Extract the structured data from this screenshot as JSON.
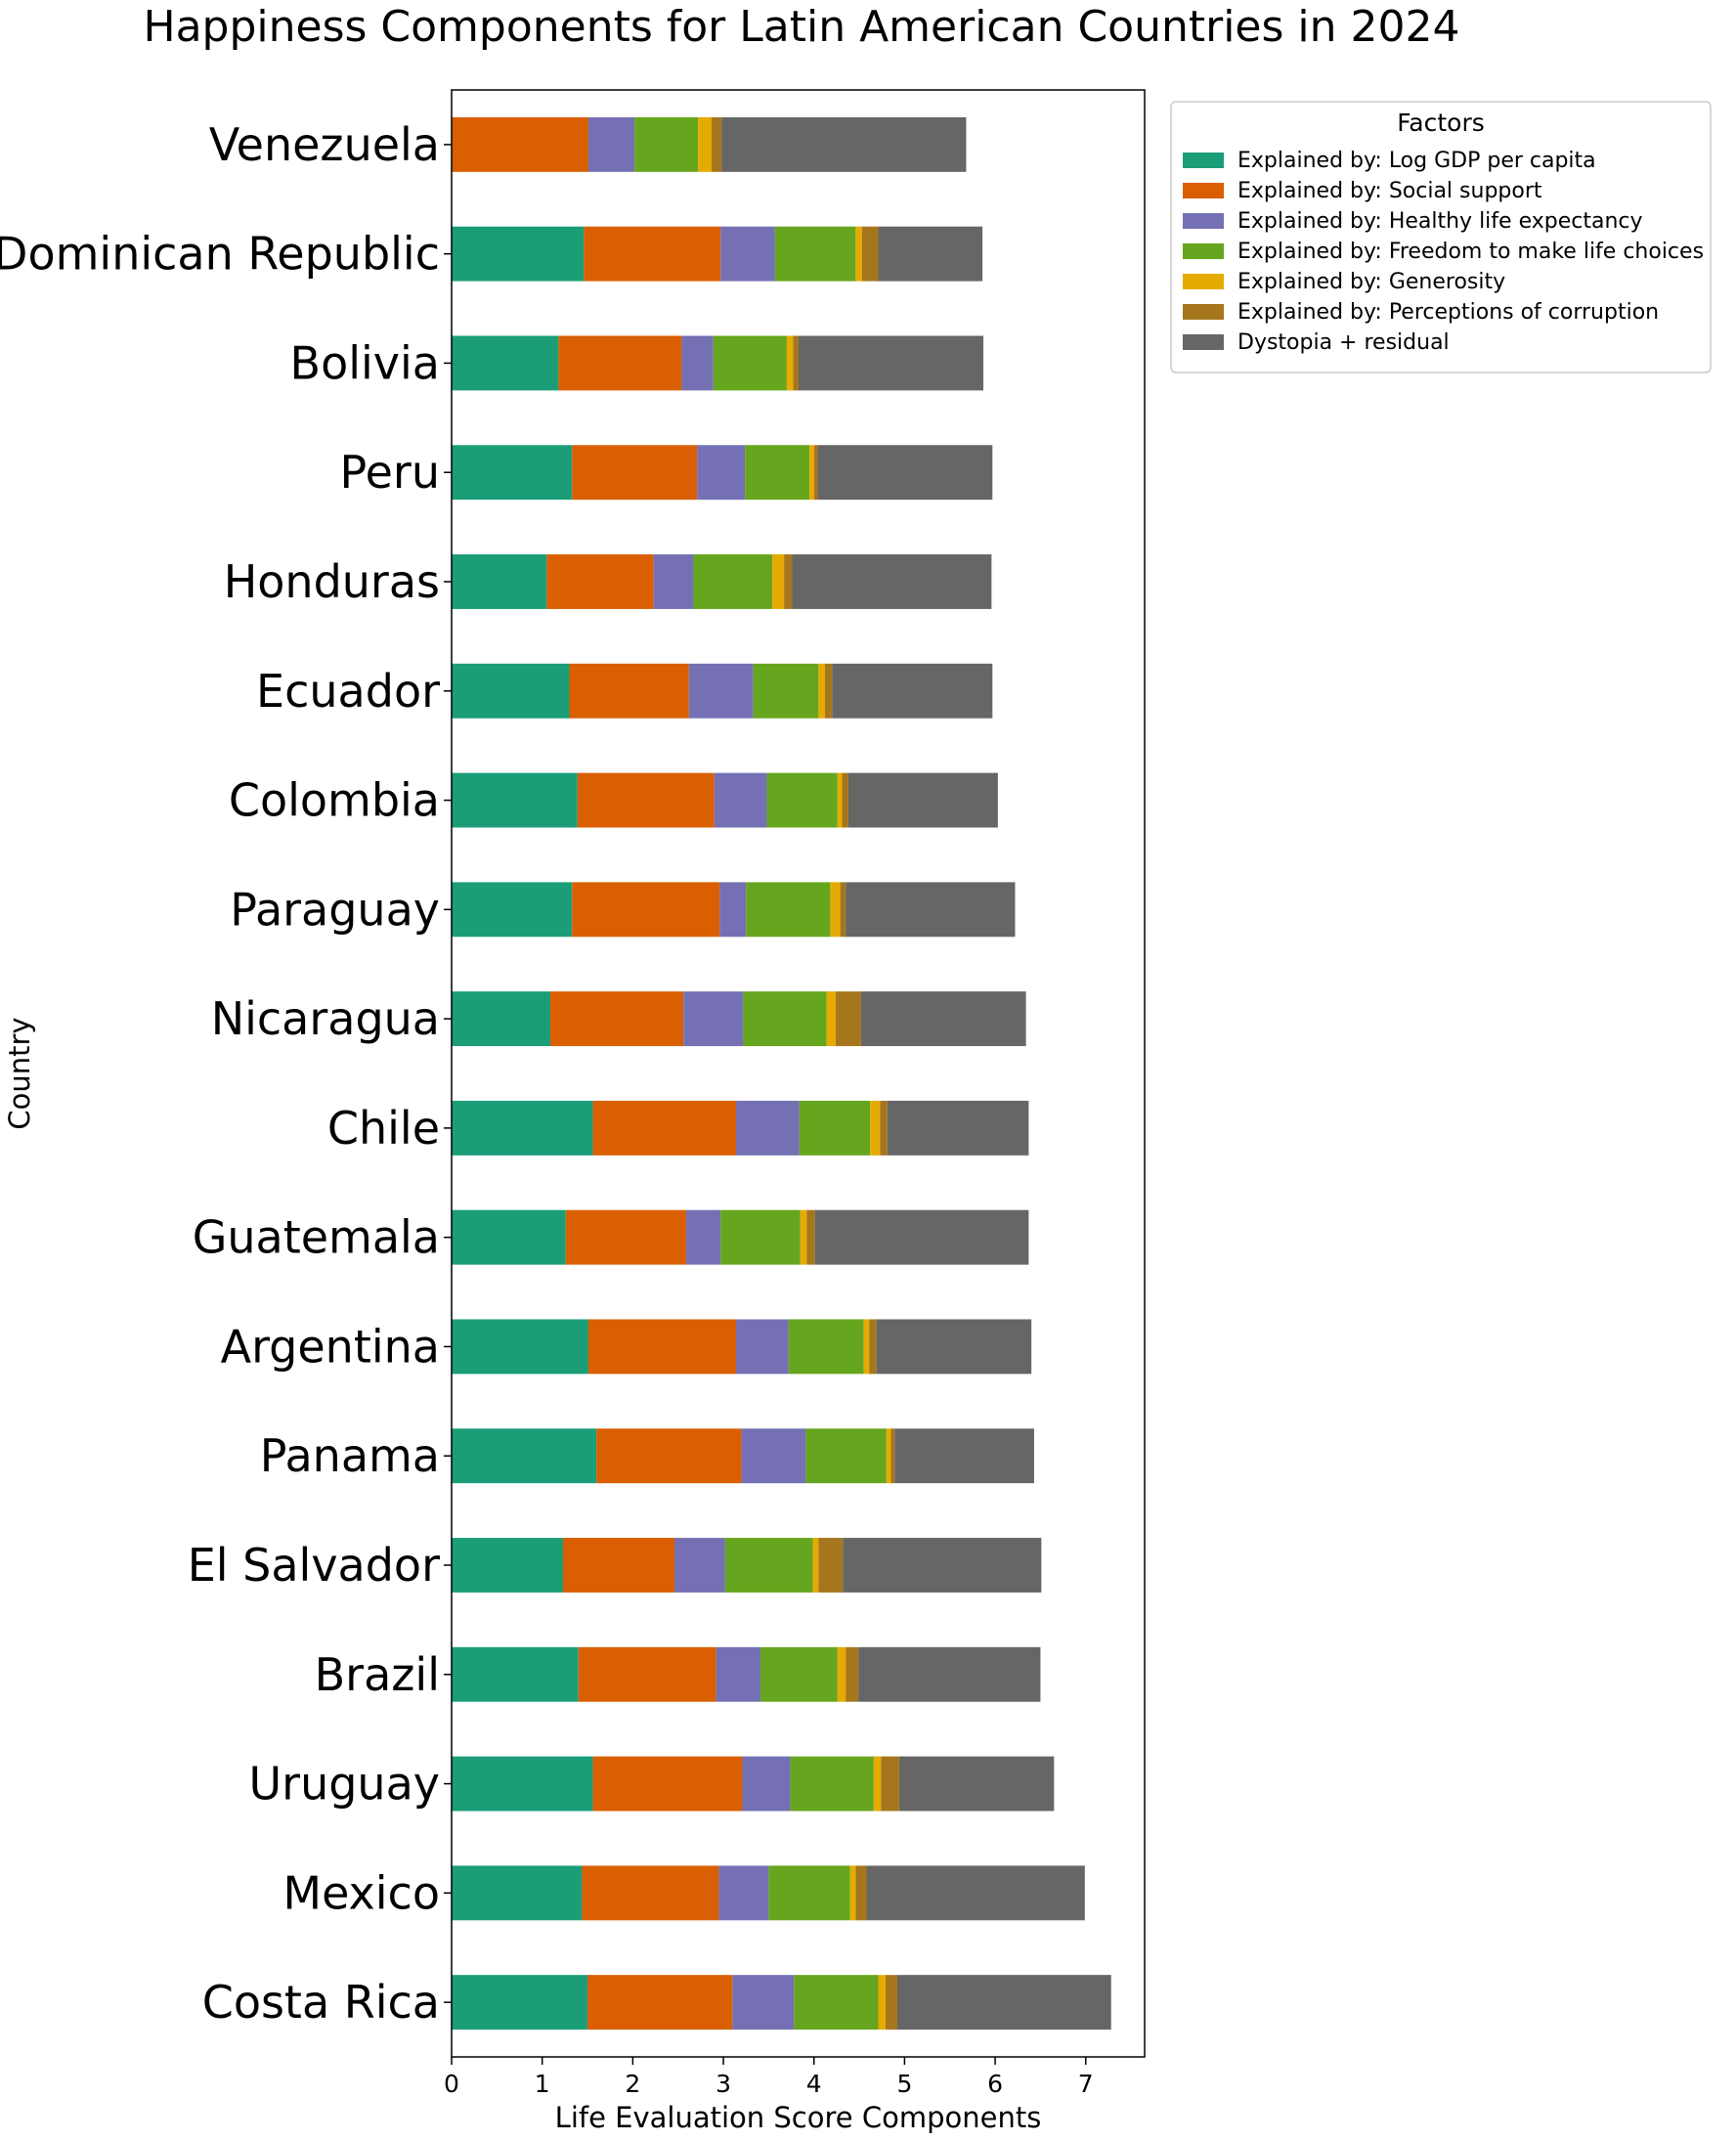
{
  "chart_data": {
    "type": "bar",
    "orientation": "horizontal",
    "stacked": true,
    "title": "Happiness Components for Latin American Countries in 2024",
    "xlabel": "Life Evaluation Score Components",
    "ylabel": "Country",
    "xlim": [
      0,
      7.65
    ],
    "xticks": [
      0,
      1,
      2,
      3,
      4,
      5,
      6,
      7
    ],
    "legend_title": "Factors",
    "legend_position": "outside-top-right",
    "categories": [
      "Venezuela",
      "Dominican Republic",
      "Bolivia",
      "Peru",
      "Honduras",
      "Ecuador",
      "Colombia",
      "Paraguay",
      "Nicaragua",
      "Chile",
      "Guatemala",
      "Argentina",
      "Panama",
      "El Salvador",
      "Brazil",
      "Uruguay",
      "Mexico",
      "Costa Rica"
    ],
    "series": [
      {
        "name": "Explained by: Log GDP per capita",
        "color": "#1b9e77",
        "values": [
          0.0,
          1.46,
          1.18,
          1.33,
          1.05,
          1.3,
          1.39,
          1.33,
          1.09,
          1.56,
          1.26,
          1.51,
          1.6,
          1.23,
          1.4,
          1.56,
          1.44,
          1.5
        ]
      },
      {
        "name": "Explained by: Social support",
        "color": "#d95f02",
        "values": [
          1.51,
          1.51,
          1.36,
          1.38,
          1.18,
          1.32,
          1.51,
          1.63,
          1.47,
          1.58,
          1.33,
          1.63,
          1.6,
          1.23,
          1.52,
          1.65,
          1.51,
          1.6
        ]
      },
      {
        "name": "Explained by: Healthy life expectancy",
        "color": "#7570b3",
        "values": [
          0.51,
          0.6,
          0.35,
          0.53,
          0.44,
          0.71,
          0.58,
          0.29,
          0.66,
          0.7,
          0.38,
          0.58,
          0.71,
          0.56,
          0.49,
          0.53,
          0.55,
          0.68
        ]
      },
      {
        "name": "Explained by: Freedom to make life choices",
        "color": "#66a61e",
        "values": [
          0.7,
          0.89,
          0.81,
          0.71,
          0.87,
          0.72,
          0.78,
          0.93,
          0.92,
          0.78,
          0.88,
          0.83,
          0.89,
          0.97,
          0.85,
          0.92,
          0.9,
          0.93
        ]
      },
      {
        "name": "Explained by: Generosity",
        "color": "#e6ab02",
        "values": [
          0.15,
          0.07,
          0.07,
          0.05,
          0.13,
          0.07,
          0.05,
          0.11,
          0.1,
          0.11,
          0.07,
          0.06,
          0.05,
          0.06,
          0.09,
          0.08,
          0.06,
          0.08
        ]
      },
      {
        "name": "Explained by: Perceptions of corruption",
        "color": "#a6761d",
        "values": [
          0.11,
          0.18,
          0.06,
          0.04,
          0.09,
          0.08,
          0.07,
          0.06,
          0.28,
          0.08,
          0.09,
          0.08,
          0.04,
          0.27,
          0.14,
          0.2,
          0.12,
          0.13
        ]
      },
      {
        "name": "Dystopia + residual",
        "color": "#666666",
        "values": [
          2.7,
          1.15,
          2.04,
          1.93,
          2.2,
          1.77,
          1.65,
          1.87,
          1.82,
          1.56,
          2.36,
          1.71,
          1.54,
          2.19,
          2.01,
          1.71,
          2.41,
          2.36
        ]
      }
    ]
  }
}
